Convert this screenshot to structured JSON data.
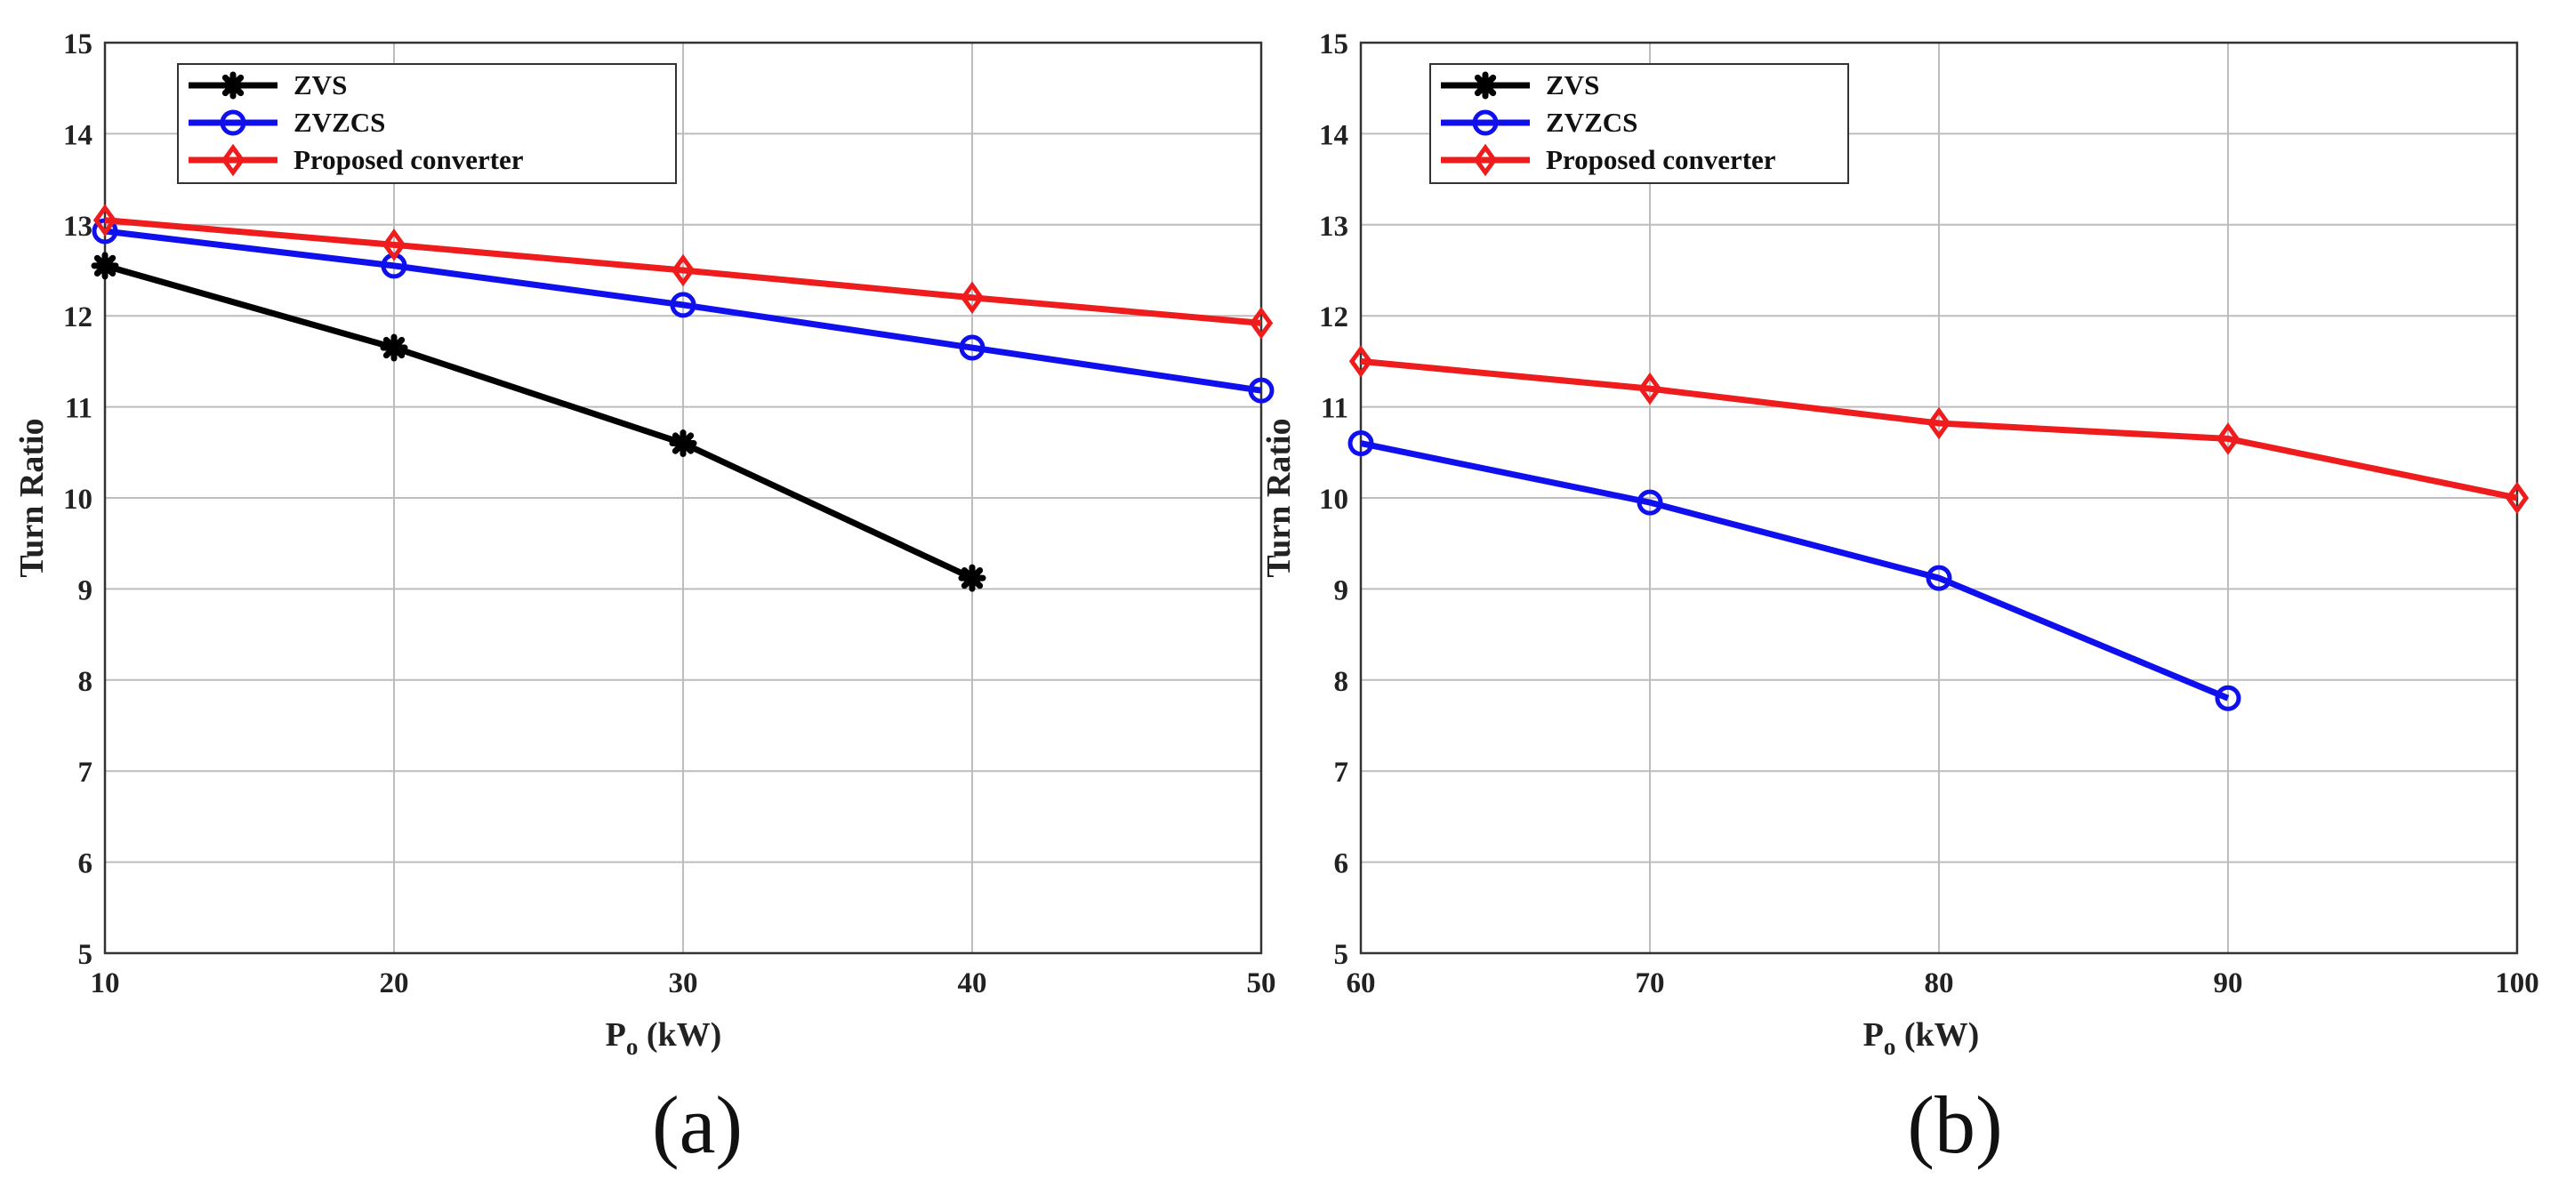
{
  "chart_data": [
    {
      "type": "line",
      "panel_label": "(a)",
      "xlabel_main": "P",
      "xlabel_sub": "o",
      "xlabel_unit": " (kW)",
      "ylabel": "Turn Ratio",
      "x": [
        10,
        20,
        30,
        40,
        50
      ],
      "xlim": [
        10,
        50
      ],
      "ylim": [
        5,
        15
      ],
      "xticks": [
        "10",
        "20",
        "30",
        "40",
        "50"
      ],
      "yticks": [
        "5",
        "6",
        "7",
        "8",
        "9",
        "10",
        "11",
        "12",
        "13",
        "14",
        "15"
      ],
      "grid": true,
      "legend_position": "top-left",
      "series": [
        {
          "name": "ZVS",
          "color": "#000000",
          "marker": "star",
          "values": [
            12.55,
            11.65,
            10.6,
            9.12,
            null
          ]
        },
        {
          "name": "ZVZCS",
          "color": "#1010ee",
          "marker": "circle",
          "values": [
            12.93,
            12.55,
            12.12,
            11.65,
            11.18
          ]
        },
        {
          "name": "Proposed converter",
          "color": "#ee1c1c",
          "marker": "diamond",
          "values": [
            13.05,
            12.78,
            12.5,
            12.2,
            11.92
          ]
        }
      ]
    },
    {
      "type": "line",
      "panel_label": "(b)",
      "xlabel_main": "P",
      "xlabel_sub": "o",
      "xlabel_unit": " (kW)",
      "ylabel": "Turn Ratio",
      "x": [
        60,
        70,
        80,
        90,
        100
      ],
      "xlim": [
        60,
        100
      ],
      "ylim": [
        5,
        15
      ],
      "xticks": [
        "60",
        "70",
        "80",
        "90",
        "100"
      ],
      "yticks": [
        "5",
        "6",
        "7",
        "8",
        "9",
        "10",
        "11",
        "12",
        "13",
        "14",
        "15"
      ],
      "grid": true,
      "legend_position": "top-left",
      "series": [
        {
          "name": "ZVS",
          "color": "#000000",
          "marker": "star",
          "values": [
            null,
            null,
            null,
            null,
            null
          ]
        },
        {
          "name": "ZVZCS",
          "color": "#1010ee",
          "marker": "circle",
          "values": [
            10.6,
            9.95,
            9.12,
            7.8,
            null
          ]
        },
        {
          "name": "Proposed converter",
          "color": "#ee1c1c",
          "marker": "diamond",
          "values": [
            11.5,
            11.2,
            10.82,
            10.65,
            10.0
          ]
        }
      ]
    }
  ]
}
